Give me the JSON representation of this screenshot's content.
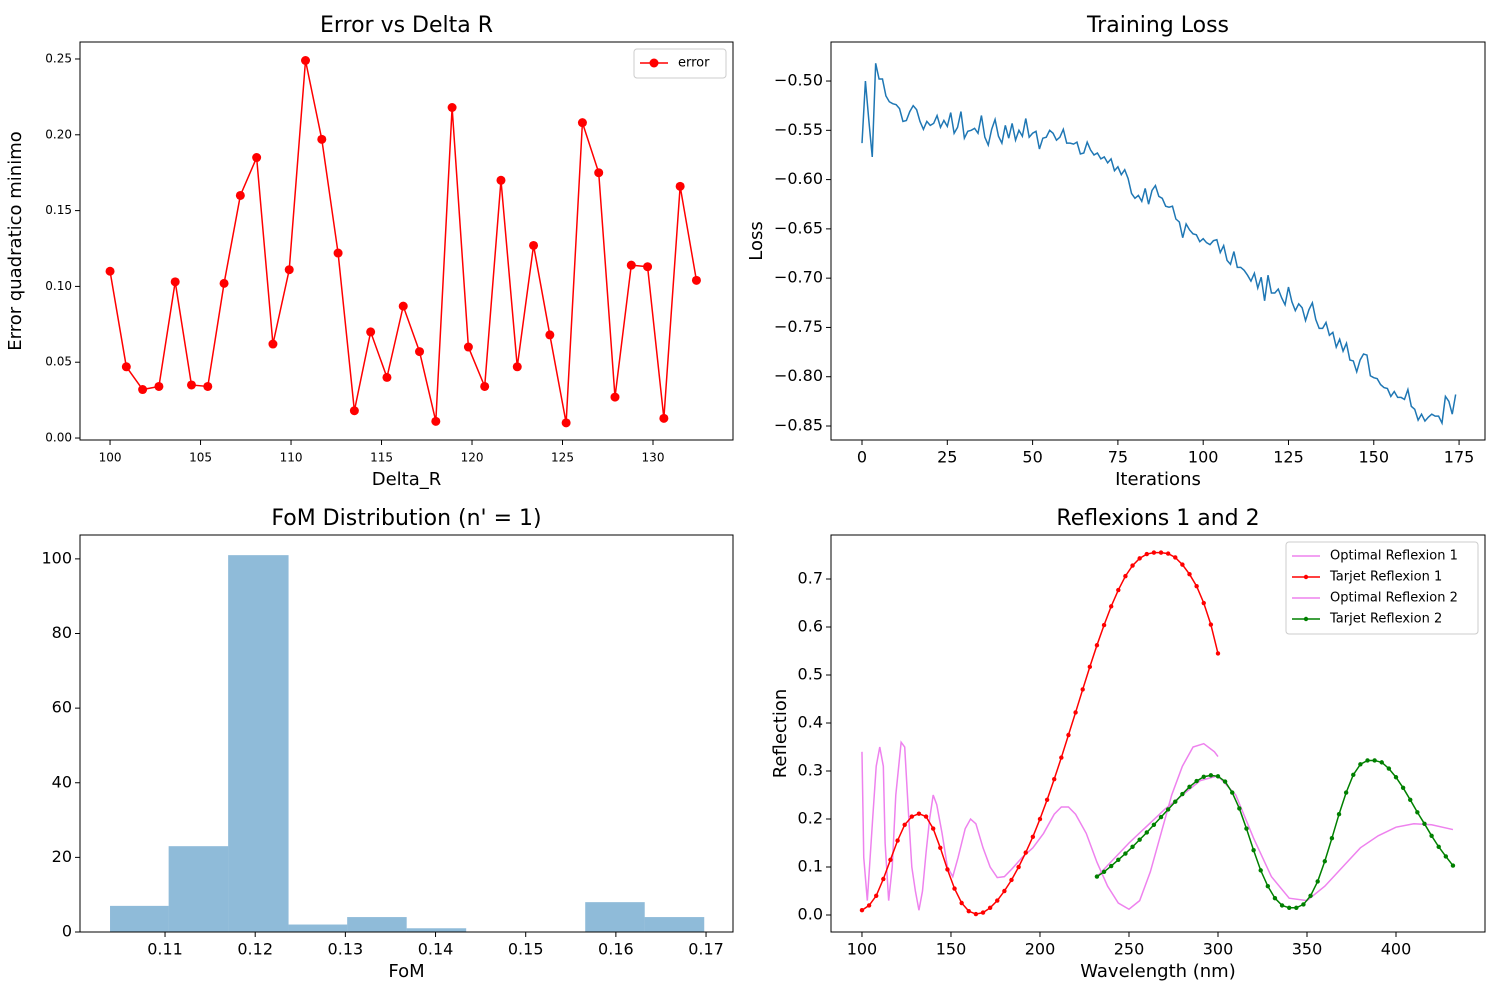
{
  "chart_data": [
    {
      "type": "line",
      "title": "Error vs Delta R",
      "xlabel": "Delta_R",
      "ylabel": "Error quadratico minimo",
      "xlim": [
        98.34,
        134.42
      ],
      "ylim": [
        -0.0013,
        0.2612
      ],
      "xticks": [
        100,
        105,
        110,
        115,
        120,
        125,
        130
      ],
      "yticks": [
        {
          "value": 0,
          "label": "0.00"
        },
        {
          "value": 0.05,
          "label": "0.05"
        },
        {
          "value": 0.1,
          "label": "0.10"
        },
        {
          "value": 0.15,
          "label": "0.15"
        },
        {
          "value": 0.2,
          "label": "0.20"
        },
        {
          "value": 0.25,
          "label": "0.25"
        }
      ],
      "legend": "upper right",
      "x": [
        100,
        100.9,
        101.8,
        102.7,
        103.6,
        104.5,
        105.4,
        106.3,
        107.2,
        108.1,
        109,
        109.9,
        110.8,
        111.7,
        112.6,
        113.5,
        114.4,
        115.3,
        116.2,
        117.1,
        118,
        118.9,
        119.8,
        120.7,
        121.6,
        122.5,
        123.4,
        124.3,
        125.2,
        126.1,
        127,
        127.9,
        128.8,
        129.7,
        130.6,
        131.5,
        132.4
      ],
      "series": [
        {
          "name": "error",
          "color": "#ff0000",
          "marker": true,
          "values": [
            0.11,
            0.047,
            0.032,
            0.034,
            0.103,
            0.035,
            0.034,
            0.102,
            0.16,
            0.185,
            0.062,
            0.111,
            0.249,
            0.197,
            0.122,
            0.018,
            0.07,
            0.04,
            0.087,
            0.057,
            0.011,
            0.218,
            0.06,
            0.034,
            0.17,
            0.047,
            0.127,
            0.068,
            0.01,
            0.208,
            0.175,
            0.027,
            0.114,
            0.113,
            0.013,
            0.166,
            0.104
          ]
        }
      ]
    },
    {
      "type": "line",
      "title": "Training Loss",
      "xlabel": "Iterations",
      "ylabel": "Loss",
      "xlim": [
        -9.09,
        182.6
      ],
      "ylim": [
        -0.8642,
        -0.4604
      ],
      "xticks": [
        0,
        25,
        50,
        75,
        100,
        125,
        150,
        175
      ],
      "yticks": [
        {
          "value": -0.85,
          "label": "−0.85"
        },
        {
          "value": -0.8,
          "label": "−0.80"
        },
        {
          "value": -0.75,
          "label": "−0.75"
        },
        {
          "value": -0.7,
          "label": "−0.70"
        },
        {
          "value": -0.65,
          "label": "−0.65"
        },
        {
          "value": -0.6,
          "label": "−0.60"
        },
        {
          "value": -0.55,
          "label": "−0.55"
        },
        {
          "value": -0.5,
          "label": "−0.50"
        }
      ],
      "x": [
        0,
        1,
        2,
        3,
        4,
        5,
        6,
        7,
        8,
        9,
        10,
        11,
        12,
        13,
        14,
        15,
        16,
        17,
        18,
        19,
        20,
        21,
        22,
        23,
        24,
        25,
        26,
        27,
        28,
        29,
        30,
        31,
        32,
        33,
        34,
        35,
        36,
        37,
        38,
        39,
        40,
        41,
        42,
        43,
        44,
        45,
        46,
        47,
        48,
        49,
        50,
        51,
        52,
        53,
        54,
        55,
        56,
        57,
        58,
        59,
        60,
        61,
        62,
        63,
        64,
        65,
        66,
        67,
        68,
        69,
        70,
        71,
        72,
        73,
        74,
        75,
        76,
        77,
        78,
        79,
        80,
        81,
        82,
        83,
        84,
        85,
        86,
        87,
        88,
        89,
        90,
        91,
        92,
        93,
        94,
        95,
        96,
        97,
        98,
        99,
        100,
        101,
        102,
        103,
        104,
        105,
        106,
        107,
        108,
        109,
        110,
        111,
        112,
        113,
        114,
        115,
        116,
        117,
        118,
        119,
        120,
        121,
        122,
        123,
        124,
        125,
        126,
        127,
        128,
        129,
        130,
        131,
        132,
        133,
        134,
        135,
        136,
        137,
        138,
        139,
        140,
        141,
        142,
        143,
        144,
        145,
        146,
        147,
        148,
        149,
        150,
        151,
        152,
        153,
        154,
        155,
        156,
        157,
        158,
        159,
        160,
        161,
        162,
        163,
        164,
        165,
        166,
        167,
        168,
        169,
        170,
        171,
        172,
        173,
        174
      ],
      "series": [
        {
          "color": "#1f77b4",
          "marker": false,
          "values": [
            -0.563,
            -0.5,
            -0.54,
            -0.577,
            -0.482,
            -0.498,
            -0.498,
            -0.515,
            -0.521,
            -0.523,
            -0.524,
            -0.528,
            -0.541,
            -0.54,
            -0.531,
            -0.525,
            -0.529,
            -0.541,
            -0.549,
            -0.541,
            -0.545,
            -0.543,
            -0.535,
            -0.547,
            -0.54,
            -0.546,
            -0.532,
            -0.553,
            -0.547,
            -0.531,
            -0.558,
            -0.551,
            -0.55,
            -0.548,
            -0.553,
            -0.535,
            -0.557,
            -0.565,
            -0.549,
            -0.539,
            -0.556,
            -0.563,
            -0.545,
            -0.558,
            -0.543,
            -0.56,
            -0.55,
            -0.556,
            -0.538,
            -0.557,
            -0.553,
            -0.551,
            -0.569,
            -0.558,
            -0.557,
            -0.55,
            -0.553,
            -0.56,
            -0.557,
            -0.549,
            -0.563,
            -0.563,
            -0.564,
            -0.562,
            -0.574,
            -0.573,
            -0.562,
            -0.57,
            -0.575,
            -0.573,
            -0.579,
            -0.577,
            -0.583,
            -0.579,
            -0.591,
            -0.587,
            -0.595,
            -0.59,
            -0.599,
            -0.614,
            -0.619,
            -0.616,
            -0.622,
            -0.609,
            -0.625,
            -0.611,
            -0.606,
            -0.617,
            -0.619,
            -0.627,
            -0.628,
            -0.627,
            -0.64,
            -0.643,
            -0.659,
            -0.645,
            -0.651,
            -0.655,
            -0.656,
            -0.663,
            -0.66,
            -0.664,
            -0.666,
            -0.662,
            -0.661,
            -0.674,
            -0.667,
            -0.682,
            -0.686,
            -0.673,
            -0.689,
            -0.689,
            -0.692,
            -0.697,
            -0.703,
            -0.695,
            -0.71,
            -0.699,
            -0.723,
            -0.697,
            -0.715,
            -0.715,
            -0.711,
            -0.72,
            -0.727,
            -0.709,
            -0.724,
            -0.733,
            -0.726,
            -0.73,
            -0.743,
            -0.732,
            -0.725,
            -0.742,
            -0.751,
            -0.751,
            -0.745,
            -0.758,
            -0.755,
            -0.77,
            -0.762,
            -0.774,
            -0.766,
            -0.783,
            -0.784,
            -0.795,
            -0.783,
            -0.777,
            -0.778,
            -0.799,
            -0.801,
            -0.802,
            -0.808,
            -0.811,
            -0.812,
            -0.82,
            -0.815,
            -0.821,
            -0.821,
            -0.823,
            -0.813,
            -0.83,
            -0.833,
            -0.844,
            -0.838,
            -0.845,
            -0.841,
            -0.838,
            -0.84,
            -0.84,
            -0.847,
            -0.82,
            -0.825,
            -0.838,
            -0.818
          ]
        }
      ]
    },
    {
      "type": "histogram",
      "title": "FoM Distribution (n' = 1)",
      "xlabel": "FoM",
      "xlim": [
        0.10057,
        0.17299
      ],
      "ylim": [
        0,
        106.4
      ],
      "xticks": [
        0.11,
        0.12,
        0.13,
        0.14,
        0.15,
        0.16,
        0.17
      ],
      "yticks": [
        0,
        20,
        40,
        60,
        80,
        100
      ],
      "color": "#1f77b4",
      "alpha": 0.5,
      "bins": [
        0.1039,
        0.1104,
        0.117,
        0.1237,
        0.1302,
        0.1368,
        0.1434,
        0.15,
        0.1566,
        0.1632,
        0.1698
      ],
      "counts": [
        7,
        23,
        101,
        2,
        4,
        1,
        0,
        0,
        8,
        4
      ]
    },
    {
      "type": "line",
      "title": "Reflexions 1 and 2",
      "xlabel": "Wavelength (nm)",
      "ylabel": "Reflection",
      "xlim": [
        82.6,
        450
      ],
      "ylim": [
        -0.0354,
        0.7917
      ],
      "xticks": [
        100,
        150,
        200,
        250,
        300,
        350,
        400
      ],
      "yticks": [
        {
          "value": 0,
          "label": "0.0"
        },
        0.1,
        0.2,
        0.3,
        0.4,
        0.5,
        0.6,
        0.7
      ],
      "legend": "upper right",
      "series": [
        {
          "name": "Optimal Reflexion 1",
          "color": "#ee82ee",
          "marker": false,
          "x": [
            100,
            101,
            103,
            106,
            108,
            110,
            112,
            113,
            115,
            117,
            119,
            122,
            124,
            126,
            128,
            130,
            132,
            134,
            136,
            138,
            140,
            142,
            145,
            148,
            151,
            154,
            158,
            161,
            164,
            168,
            172,
            176,
            180,
            184,
            190,
            196,
            202,
            208,
            212,
            216,
            220,
            226,
            232,
            238,
            244,
            250,
            256,
            262,
            268,
            274,
            280,
            286,
            292,
            298,
            300
          ],
          "values": [
            0.34,
            0.12,
            0.03,
            0.2,
            0.31,
            0.35,
            0.31,
            0.15,
            0.03,
            0.1,
            0.25,
            0.36,
            0.35,
            0.22,
            0.1,
            0.05,
            0.01,
            0.05,
            0.13,
            0.2,
            0.25,
            0.23,
            0.17,
            0.1,
            0.08,
            0.12,
            0.18,
            0.2,
            0.19,
            0.14,
            0.1,
            0.078,
            0.08,
            0.095,
            0.12,
            0.14,
            0.17,
            0.21,
            0.225,
            0.225,
            0.21,
            0.17,
            0.11,
            0.06,
            0.025,
            0.012,
            0.03,
            0.09,
            0.17,
            0.25,
            0.31,
            0.35,
            0.357,
            0.34,
            0.33
          ]
        },
        {
          "name": "Tarjet Reflexion 1",
          "color": "#ff0000",
          "marker": true,
          "x": [
            100,
            104,
            108,
            112,
            116,
            120,
            124,
            128,
            132,
            136,
            140,
            144,
            148,
            152,
            156,
            160,
            164,
            168,
            172,
            176,
            180,
            184,
            188,
            192,
            196,
            200,
            204,
            208,
            212,
            216,
            220,
            224,
            228,
            232,
            236,
            240,
            244,
            248,
            252,
            256,
            260,
            264,
            268,
            272,
            276,
            280,
            284,
            288,
            292,
            296,
            300
          ],
          "values": [
            0.01,
            0.02,
            0.04,
            0.075,
            0.115,
            0.155,
            0.188,
            0.205,
            0.211,
            0.205,
            0.18,
            0.14,
            0.095,
            0.055,
            0.025,
            0.008,
            0.002,
            0.005,
            0.015,
            0.03,
            0.05,
            0.073,
            0.1,
            0.13,
            0.163,
            0.2,
            0.24,
            0.283,
            0.328,
            0.375,
            0.422,
            0.47,
            0.517,
            0.562,
            0.604,
            0.643,
            0.677,
            0.706,
            0.728,
            0.743,
            0.752,
            0.755,
            0.755,
            0.753,
            0.745,
            0.73,
            0.71,
            0.685,
            0.65,
            0.605,
            0.545
          ]
        },
        {
          "name": "Optimal Reflexion 2",
          "color": "#ee82ee",
          "marker": false,
          "x": [
            232,
            250,
            270,
            290,
            300,
            310,
            320,
            330,
            340,
            350,
            360,
            370,
            380,
            390,
            400,
            410,
            420,
            432
          ],
          "values": [
            0.08,
            0.15,
            0.22,
            0.28,
            0.29,
            0.25,
            0.16,
            0.08,
            0.035,
            0.03,
            0.06,
            0.1,
            0.14,
            0.165,
            0.183,
            0.19,
            0.188,
            0.178
          ]
        },
        {
          "name": "Tarjet Reflexion 2",
          "color": "#008000",
          "marker": true,
          "x": [
            232,
            236,
            240,
            244,
            248,
            252,
            256,
            260,
            264,
            268,
            272,
            276,
            280,
            284,
            288,
            292,
            296,
            300,
            304,
            308,
            312,
            316,
            320,
            324,
            328,
            332,
            336,
            340,
            344,
            348,
            352,
            356,
            360,
            364,
            368,
            372,
            376,
            380,
            384,
            388,
            392,
            396,
            400,
            404,
            408,
            412,
            416,
            420,
            424,
            428,
            432
          ],
          "values": [
            0.08,
            0.09,
            0.102,
            0.115,
            0.128,
            0.142,
            0.157,
            0.172,
            0.188,
            0.204,
            0.22,
            0.236,
            0.252,
            0.267,
            0.279,
            0.288,
            0.291,
            0.289,
            0.278,
            0.255,
            0.222,
            0.18,
            0.135,
            0.093,
            0.06,
            0.035,
            0.02,
            0.015,
            0.015,
            0.022,
            0.04,
            0.07,
            0.112,
            0.16,
            0.21,
            0.255,
            0.292,
            0.314,
            0.322,
            0.322,
            0.318,
            0.305,
            0.287,
            0.265,
            0.24,
            0.214,
            0.19,
            0.165,
            0.142,
            0.122,
            0.103
          ]
        }
      ]
    }
  ]
}
